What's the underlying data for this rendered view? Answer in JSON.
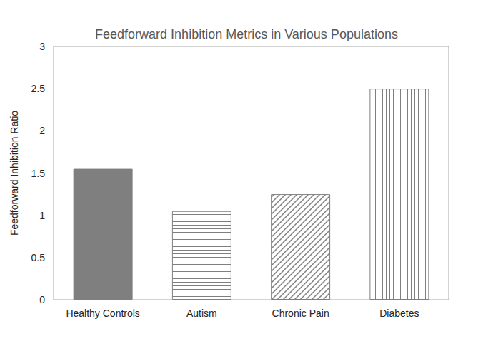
{
  "chart_data": {
    "type": "bar",
    "title": "Feedforward Inhibition Metrics in Various Populations",
    "y_label": "Feedforward Inhibition Ratio",
    "categories": [
      "Healthy Controls",
      "Autism",
      "Chronic Pain",
      "Diabetes"
    ],
    "values": [
      1.55,
      1.05,
      1.25,
      2.5
    ],
    "colors": [
      "#7f7f7f",
      "#7f7f7f",
      "#7f7f7f",
      "#7f7f7f"
    ],
    "ylim": [
      0,
      3
    ],
    "yticks": [
      0,
      0.5,
      1,
      1.5,
      2,
      2.5,
      3
    ],
    "grid": false
  }
}
